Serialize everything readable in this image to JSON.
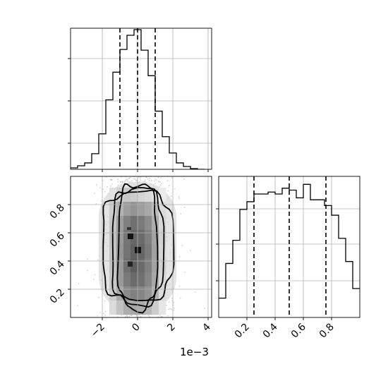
{
  "chart_data": [
    {
      "panel": "top",
      "type": "step-histogram",
      "x_range": [
        -3.8,
        4.2
      ],
      "bin_edges": [
        -3.8,
        -3.4,
        -3.0,
        -2.6,
        -2.2,
        -1.8,
        -1.4,
        -1.0,
        -0.6,
        -0.2,
        0.2,
        0.6,
        1.0,
        1.4,
        1.8,
        2.2,
        2.6,
        3.0,
        3.4,
        3.8
      ],
      "counts": [
        0.2,
        0.5,
        0.9,
        2.2,
        5.0,
        9.8,
        13.7,
        16.9,
        18.9,
        19.7,
        16.8,
        13.2,
        8.2,
        4.6,
        2.3,
        0.9,
        0.4,
        0.1,
        0.0
      ],
      "quantiles": [
        -1.0,
        0.0,
        1.0
      ],
      "x_ticks": [
        -2,
        0,
        2,
        4
      ],
      "tick_labels_shown": false,
      "grid": true
    },
    {
      "panel": "bottom-left",
      "type": "2d-density-contour",
      "x_range": [
        -3.8,
        4.2
      ],
      "y_range": [
        0.0,
        1.0
      ],
      "x_ticks": [
        -2,
        0,
        2,
        4
      ],
      "x_tick_labels": [
        "−2",
        "0",
        "2",
        "4"
      ],
      "y_ticks": [
        0.2,
        0.4,
        0.6,
        0.8
      ],
      "y_tick_labels": [
        "0.2",
        "0.4",
        "0.6",
        "0.8"
      ],
      "x_offset_label": "1e−3",
      "contour_widths": [
        1.1,
        1.45,
        2.0
      ],
      "grid": true
    },
    {
      "panel": "bottom-right",
      "type": "step-histogram",
      "x_range": [
        0.0,
        1.0
      ],
      "bin_edges": [
        0.0,
        0.05,
        0.1,
        0.15,
        0.2,
        0.25,
        0.3,
        0.35,
        0.4,
        0.45,
        0.5,
        0.55,
        0.6,
        0.65,
        0.7,
        0.75,
        0.8,
        0.85,
        0.9,
        0.95,
        1.0
      ],
      "counts": [
        0.5,
        1.4,
        2.0,
        2.8,
        3.0,
        3.2,
        3.2,
        3.25,
        3.2,
        3.35,
        3.3,
        3.1,
        3.45,
        3.05,
        3.05,
        2.9,
        2.65,
        2.05,
        1.45,
        0.75
      ],
      "quantiles": [
        0.25,
        0.5,
        0.76
      ],
      "x_ticks": [
        0.2,
        0.4,
        0.6,
        0.8
      ],
      "x_tick_labels": [
        "0.2",
        "0.4",
        "0.6",
        "0.8"
      ],
      "grid": true
    }
  ]
}
